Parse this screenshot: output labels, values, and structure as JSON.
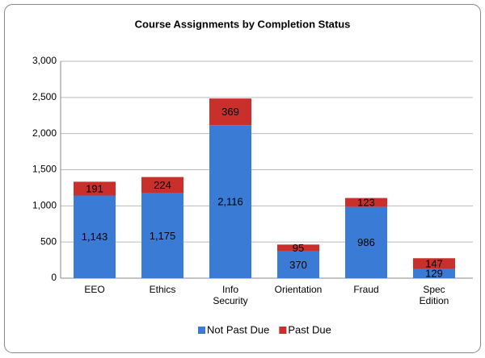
{
  "chart_data": {
    "type": "stacked_bar",
    "title": "Course Assignments by Completion Status",
    "categories": [
      "EEO",
      "Ethics",
      "Info Security",
      "Orientation",
      "Fraud",
      "Spec Edition"
    ],
    "series": [
      {
        "name": "Not Past Due",
        "color": "#3a7bd5",
        "values": [
          1143,
          1175,
          2116,
          370,
          986,
          129
        ],
        "value_labels": [
          "1,143",
          "1,175",
          "2,116",
          "370",
          "986",
          "129"
        ]
      },
      {
        "name": "Past Due",
        "color": "#c9302c",
        "values": [
          191,
          224,
          369,
          95,
          123,
          147
        ]
      }
    ],
    "ylim": [
      0,
      3000
    ],
    "yticks": [
      0,
      500,
      {
        "value": 1000,
        "label": "1,000"
      },
      {
        "value": 1500,
        "label": "1,500"
      },
      {
        "value": 2000,
        "label": "2,000"
      },
      {
        "value": 2500,
        "label": "2,500"
      },
      {
        "value": 3000,
        "label": "3,000"
      }
    ],
    "grid": true,
    "legend": "bottom"
  }
}
